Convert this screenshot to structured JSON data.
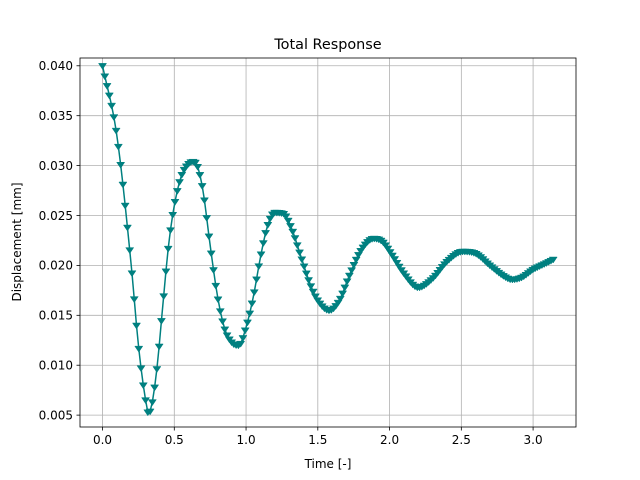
{
  "chart_data": {
    "type": "line",
    "title": "Total Response",
    "xlabel": "Time [-]",
    "ylabel": "Displacement [mm]",
    "xlim": [
      -0.157,
      3.299
    ],
    "ylim": [
      0.00381,
      0.04078
    ],
    "xticks": [
      0.0,
      0.5,
      1.0,
      1.5,
      2.0,
      2.5,
      3.0
    ],
    "xtick_labels": [
      "0.0",
      "0.5",
      "1.0",
      "1.5",
      "2.0",
      "2.5",
      "3.0"
    ],
    "yticks": [
      0.005,
      0.01,
      0.015,
      0.02,
      0.025,
      0.03,
      0.035,
      0.04
    ],
    "ytick_labels": [
      "0.005",
      "0.010",
      "0.015",
      "0.020",
      "0.025",
      "0.030",
      "0.035",
      "0.040"
    ],
    "grid": true,
    "marker": "triangle-down",
    "color": "#008080",
    "series": [
      {
        "x": [
          0.0,
          0.1,
          0.2,
          0.25,
          0.3,
          0.32,
          0.34,
          0.38,
          0.42,
          0.46,
          0.5,
          0.55,
          0.6,
          0.63,
          0.66,
          0.7,
          0.75,
          0.8,
          0.85,
          0.9,
          0.95,
          1.0,
          1.05,
          1.1,
          1.15,
          1.2,
          1.26,
          1.32,
          1.38,
          1.45,
          1.5,
          1.58,
          1.65,
          1.72,
          1.8,
          1.89,
          1.95,
          2.02,
          2.1,
          2.2,
          2.3,
          2.4,
          2.51,
          2.6,
          2.7,
          2.8,
          2.85,
          2.92,
          3.0,
          3.1,
          3.14
        ],
        "y": [
          0.04,
          0.033,
          0.02,
          0.012,
          0.0065,
          0.0052,
          0.0058,
          0.0098,
          0.016,
          0.022,
          0.026,
          0.029,
          0.0302,
          0.0304,
          0.03,
          0.0275,
          0.022,
          0.017,
          0.0137,
          0.0123,
          0.012,
          0.0138,
          0.0168,
          0.0208,
          0.024,
          0.0253,
          0.0252,
          0.0236,
          0.021,
          0.018,
          0.0165,
          0.0155,
          0.0165,
          0.019,
          0.0215,
          0.0227,
          0.0224,
          0.021,
          0.0192,
          0.0178,
          0.0187,
          0.0204,
          0.0214,
          0.0212,
          0.02,
          0.0189,
          0.0186,
          0.0188,
          0.0196,
          0.0203,
          0.0206
        ]
      }
    ]
  }
}
